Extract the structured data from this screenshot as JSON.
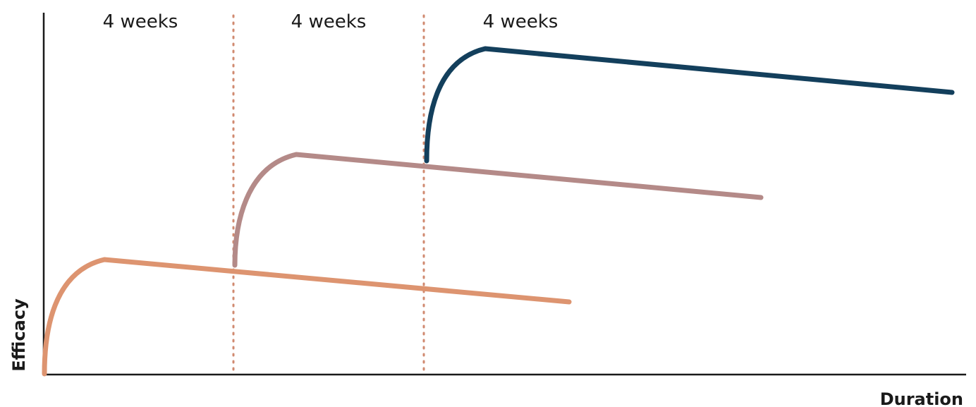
{
  "labels": {
    "y_axis": "Efficacy",
    "x_axis": "Duration",
    "periods": [
      "4 weeks",
      "4 weeks",
      "4 weeks"
    ]
  },
  "colors": {
    "axis": "#1a1a1a",
    "divider": "#d08a70",
    "curve_1": "#dd9470",
    "curve_2": "#b48a88",
    "curve_3": "#133f5c"
  },
  "curves": [
    {
      "name": "",
      "color_key": "curve_1"
    },
    {
      "name": "",
      "color_key": "curve_2"
    },
    {
      "name": "",
      "color_key": "curve_3"
    }
  ]
}
